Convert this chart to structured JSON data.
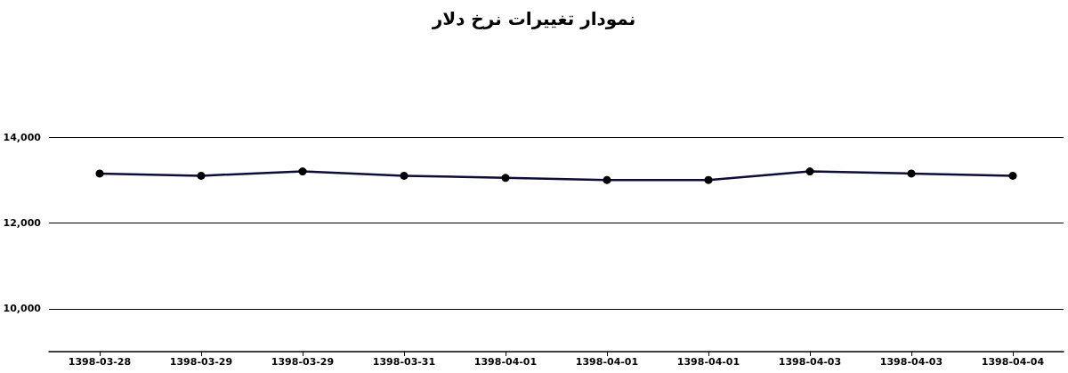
{
  "chart_data": {
    "type": "line",
    "title": "نمودار تغییرات نرخ دلار",
    "categories": [
      "1398-03-28",
      "1398-03-29",
      "1398-03-29",
      "1398-03-31",
      "1398-04-01",
      "1398-04-01",
      "1398-04-01",
      "1398-04-03",
      "1398-04-03",
      "1398-04-04"
    ],
    "series": [
      {
        "color": "#0d0d3a",
        "values": [
          13150,
          13100,
          13200,
          13100,
          13050,
          13000,
          13000,
          13200,
          13150,
          13100
        ]
      }
    ],
    "ylim": [
      9000,
      14000
    ],
    "yticks": [
      {
        "value": 10000,
        "label": "10,000"
      },
      {
        "value": 12000,
        "label": "12,000"
      },
      {
        "value": 14000,
        "label": "14,000"
      }
    ],
    "grid": "y",
    "marker": "circle",
    "line_style": "solid"
  }
}
